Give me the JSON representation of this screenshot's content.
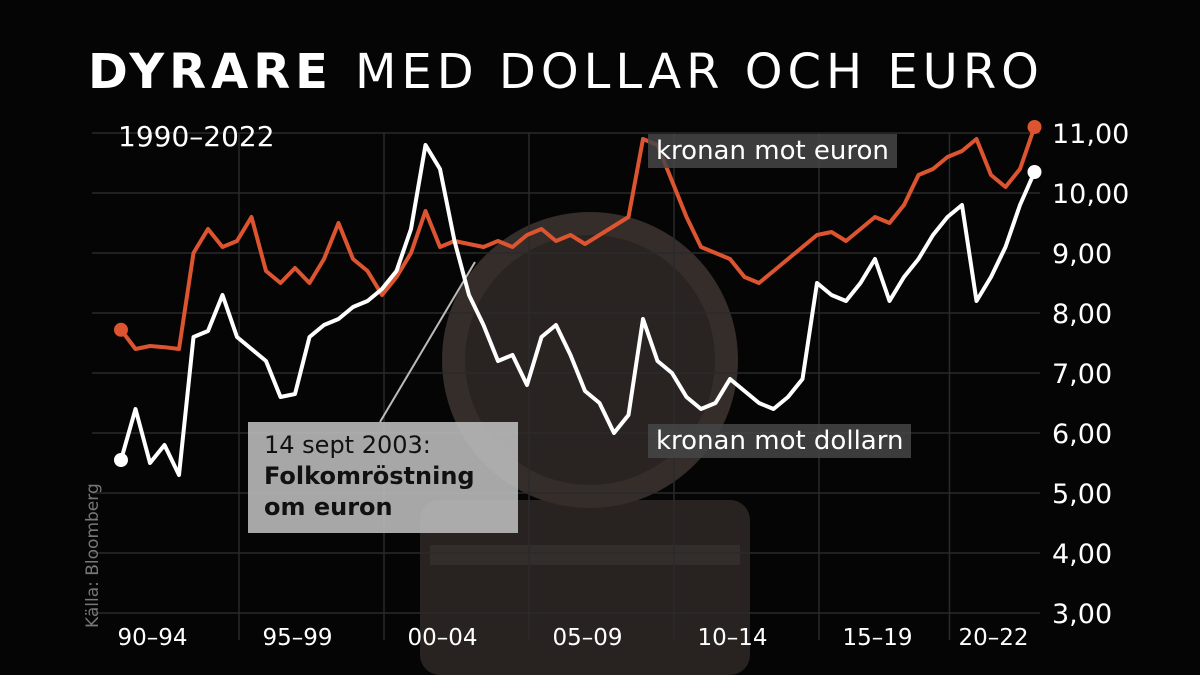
{
  "chart_data": {
    "type": "line",
    "title": [
      "DYRARE",
      "MED DOLLAR OCH EURO"
    ],
    "subtitle": "1990–2022",
    "source": "Källa: Bloomberg",
    "annotation": {
      "date": "14 sept 2003:",
      "text": "Folkomröstning om euron"
    },
    "x": [
      1991,
      1991.5,
      1992,
      1992.5,
      1993,
      1993.5,
      1994,
      1994.5,
      1995,
      1995.5,
      1996,
      1996.5,
      1997,
      1997.5,
      1998,
      1998.5,
      1999,
      1999.5,
      2000,
      2000.5,
      2001,
      2001.5,
      2002,
      2002.5,
      2003,
      2003.5,
      2004,
      2004.5,
      2005,
      2005.5,
      2006,
      2006.5,
      2007,
      2007.5,
      2008,
      2008.5,
      2009,
      2009.5,
      2010,
      2010.5,
      2011,
      2011.5,
      2012,
      2012.5,
      2013,
      2013.5,
      2014,
      2014.5,
      2015,
      2015.5,
      2016,
      2016.5,
      2017,
      2017.5,
      2018,
      2018.5,
      2019,
      2019.5,
      2020,
      2020.5,
      2021,
      2021.5,
      2022,
      2022.5
    ],
    "series": [
      {
        "name": "kronan mot euron",
        "color": "#dc5430",
        "values": [
          7.72,
          7.4,
          7.45,
          7.43,
          7.4,
          9.0,
          9.4,
          9.1,
          9.2,
          9.6,
          8.7,
          8.5,
          8.75,
          8.5,
          8.9,
          9.5,
          8.9,
          8.7,
          8.3,
          8.6,
          9.0,
          9.7,
          9.1,
          9.2,
          9.15,
          9.1,
          9.2,
          9.1,
          9.3,
          9.4,
          9.2,
          9.3,
          9.15,
          9.3,
          9.45,
          9.6,
          10.9,
          10.8,
          10.2,
          9.6,
          9.1,
          9.0,
          8.9,
          8.6,
          8.5,
          8.7,
          8.9,
          9.1,
          9.3,
          9.35,
          9.2,
          9.4,
          9.6,
          9.5,
          9.8,
          10.3,
          10.4,
          10.6,
          10.7,
          10.9,
          10.3,
          10.1,
          10.4,
          11.1
        ]
      },
      {
        "name": "kronan mot dollarn",
        "color": "#ffffff",
        "values": [
          5.55,
          6.4,
          5.5,
          5.8,
          5.3,
          7.6,
          7.7,
          8.3,
          7.6,
          7.4,
          7.2,
          6.6,
          6.65,
          7.6,
          7.8,
          7.9,
          8.1,
          8.2,
          8.4,
          8.7,
          9.4,
          10.8,
          10.4,
          9.2,
          8.3,
          7.8,
          7.2,
          7.3,
          6.8,
          7.6,
          7.8,
          7.3,
          6.7,
          6.5,
          6.0,
          6.3,
          7.9,
          7.2,
          7.0,
          6.6,
          6.4,
          6.5,
          6.9,
          6.7,
          6.5,
          6.4,
          6.6,
          6.9,
          8.5,
          8.3,
          8.2,
          8.5,
          8.9,
          8.2,
          8.6,
          8.9,
          9.3,
          9.6,
          9.8,
          8.2,
          8.6,
          9.1,
          9.8,
          10.35
        ]
      }
    ],
    "xlim": [
      1990,
      2023
    ],
    "xticks": [
      {
        "value": 1992.5,
        "label": "90–94"
      },
      {
        "value": 1997.5,
        "label": "95–99"
      },
      {
        "value": 2002.5,
        "label": "00–04"
      },
      {
        "value": 2007.5,
        "label": "05–09"
      },
      {
        "value": 2012.5,
        "label": "10–14"
      },
      {
        "value": 2017.5,
        "label": "15–19"
      },
      {
        "value": 2021.5,
        "label": "20–22"
      }
    ],
    "ylim": [
      3,
      11
    ],
    "yticks": [
      {
        "value": 3,
        "label": "3,00"
      },
      {
        "value": 4,
        "label": "4,00"
      },
      {
        "value": 5,
        "label": "5,00"
      },
      {
        "value": 6,
        "label": "6,00"
      },
      {
        "value": 7,
        "label": "7,00"
      },
      {
        "value": 8,
        "label": "8,00"
      },
      {
        "value": 9,
        "label": "9,00"
      },
      {
        "value": 10,
        "label": "10,00"
      },
      {
        "value": 11,
        "label": "11,00"
      }
    ],
    "grid": true
  }
}
